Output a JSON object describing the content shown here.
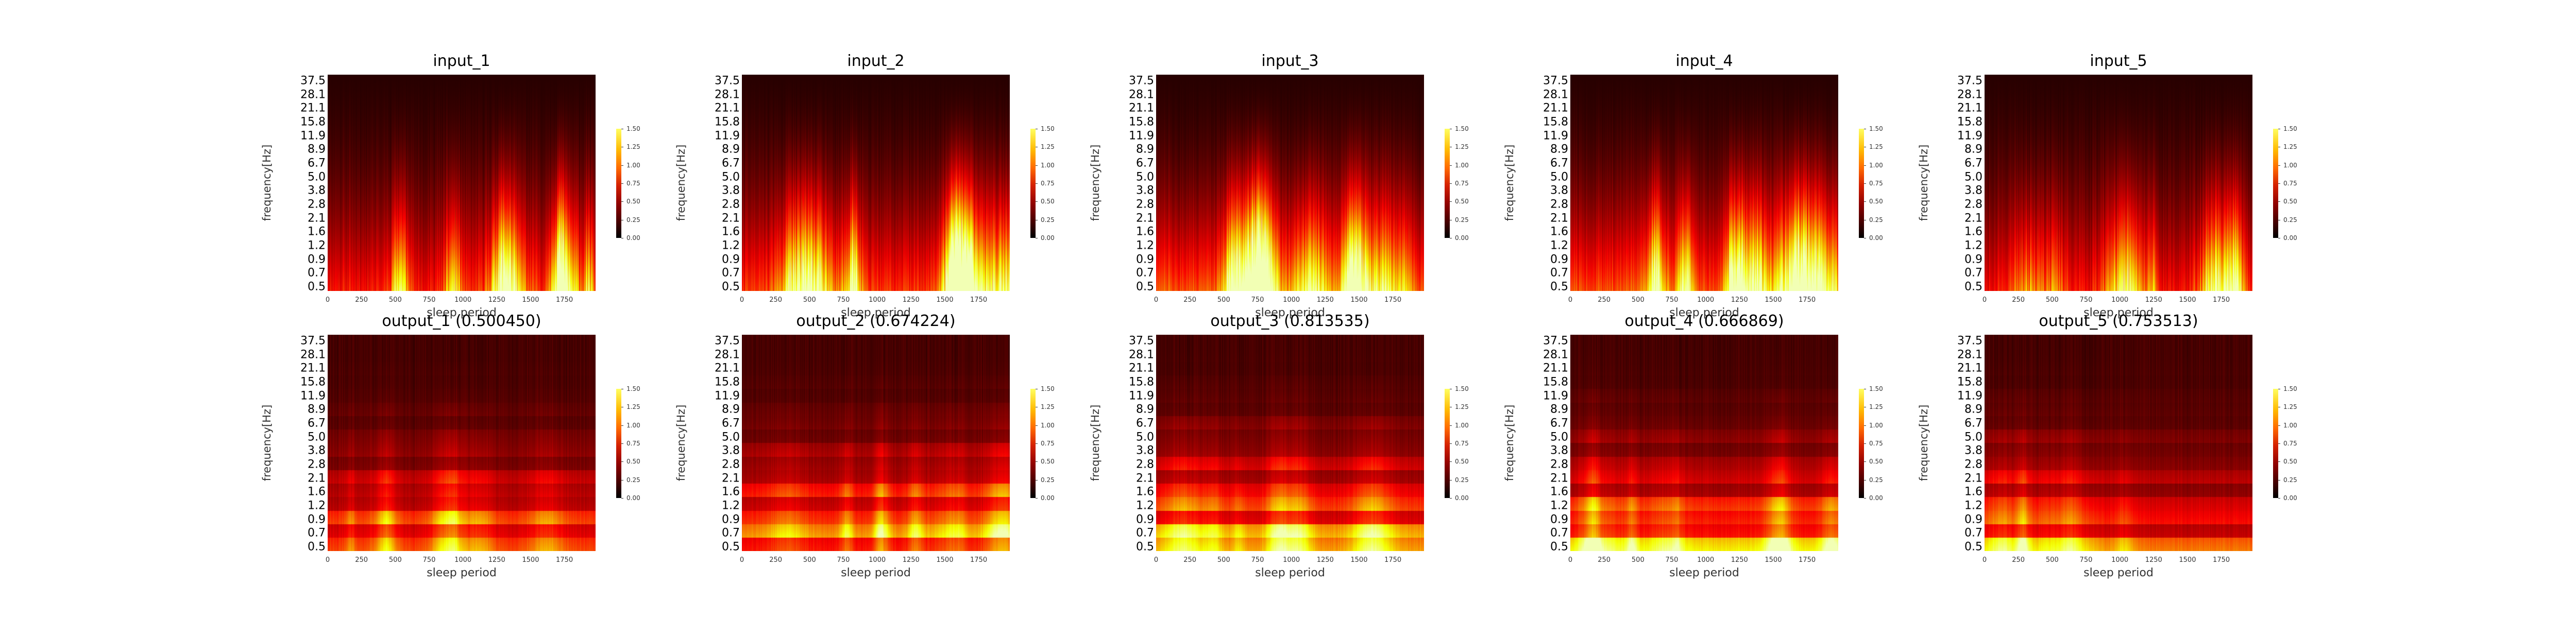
{
  "chart_data": {
    "type": "heatmap",
    "y_tick_labels": [
      "37.5",
      "28.1",
      "21.1",
      "15.8",
      "11.9",
      "8.9",
      "6.7",
      "5.0",
      "3.8",
      "2.8",
      "2.1",
      "1.6",
      "1.2",
      "0.9",
      "0.7",
      "0.5"
    ],
    "x_tick_labels": [
      "0",
      "250",
      "500",
      "750",
      "1000",
      "1250",
      "1500",
      "1750"
    ],
    "x_ticks": [
      0,
      250,
      500,
      750,
      1000,
      1250,
      1500,
      1750
    ],
    "xlim": [
      0,
      1980
    ],
    "colorbar": {
      "ticks": [
        "0.00",
        "0.25",
        "0.50",
        "0.75",
        "1.00",
        "1.25",
        "1.50"
      ],
      "range": [
        0,
        1.5
      ],
      "colormap": "hot"
    },
    "colors": {
      "cmap_low": "#000000",
      "cmap_mid": "#d42000",
      "cmap_high": "#ffff60"
    },
    "panels": [
      {
        "title": "input_1",
        "xlabel": "sleep period",
        "ylabel": "frequency[Hz]",
        "row": 0,
        "col": 0,
        "kind": "input",
        "intensity": 0.65,
        "seed": 11
      },
      {
        "title": "input_2",
        "xlabel": "sleep period",
        "ylabel": "frequency[Hz]",
        "row": 0,
        "col": 1,
        "kind": "input",
        "intensity": 0.75,
        "seed": 22
      },
      {
        "title": "input_3",
        "xlabel": "sleep period",
        "ylabel": "frequency[Hz]",
        "row": 0,
        "col": 2,
        "kind": "input",
        "intensity": 0.9,
        "seed": 33
      },
      {
        "title": "input_4",
        "xlabel": "sleep period",
        "ylabel": "frequency[Hz]",
        "row": 0,
        "col": 3,
        "kind": "input",
        "intensity": 0.85,
        "seed": 44
      },
      {
        "title": "input_5",
        "xlabel": "sleep period",
        "ylabel": "frequency[Hz]",
        "row": 0,
        "col": 4,
        "kind": "input",
        "intensity": 0.6,
        "seed": 55
      },
      {
        "title": "output_1 (0.500450)",
        "xlabel": "sleep period",
        "ylabel": "frequency[Hz]",
        "row": 1,
        "col": 0,
        "kind": "output",
        "intensity": 0.65,
        "seed": 66
      },
      {
        "title": "output_2 (0.674224)",
        "xlabel": "sleep period",
        "ylabel": "frequency[Hz]",
        "row": 1,
        "col": 1,
        "kind": "output",
        "intensity": 0.8,
        "seed": 77
      },
      {
        "title": "output_3 (0.813535)",
        "xlabel": "sleep period",
        "ylabel": "frequency[Hz]",
        "row": 1,
        "col": 2,
        "kind": "output",
        "intensity": 0.85,
        "seed": 88
      },
      {
        "title": "output_4 (0.666869)",
        "xlabel": "sleep period",
        "ylabel": "frequency[Hz]",
        "row": 1,
        "col": 3,
        "kind": "output",
        "intensity": 0.8,
        "seed": 99
      },
      {
        "title": "output_5 (0.753513)",
        "xlabel": "sleep period",
        "ylabel": "frequency[Hz]",
        "row": 1,
        "col": 4,
        "kind": "output",
        "intensity": 0.6,
        "seed": 111
      }
    ]
  }
}
